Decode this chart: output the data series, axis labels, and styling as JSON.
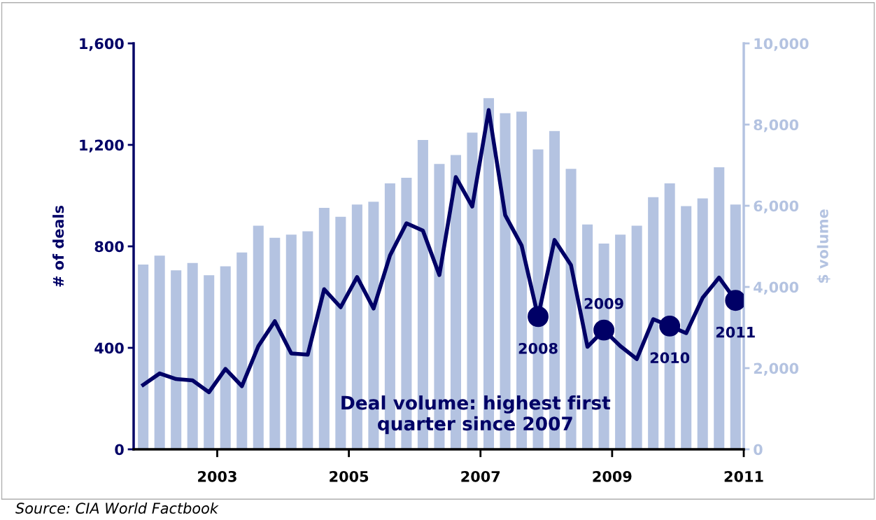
{
  "chart_data": {
    "type": "bar",
    "x": [
      2001.875,
      2002.125,
      2002.375,
      2002.625,
      2002.875,
      2003.125,
      2003.375,
      2003.625,
      2003.875,
      2004.125,
      2004.375,
      2004.625,
      2004.875,
      2005.125,
      2005.375,
      2005.625,
      2005.875,
      2006.125,
      2006.375,
      2006.625,
      2006.875,
      2007.125,
      2007.375,
      2007.625,
      2007.875,
      2008.125,
      2008.375,
      2008.625,
      2008.875,
      2009.125,
      2009.375,
      2009.625,
      2009.875,
      2010.125,
      2010.375,
      2010.625,
      2010.875
    ],
    "series": [
      {
        "axis": "y2",
        "color": "#b4c3e1",
        "values": [
          4550,
          4770,
          4410,
          4590,
          4290,
          4510,
          4850,
          5510,
          5210,
          5290,
          5370,
          5950,
          5730,
          6030,
          6100,
          6550,
          6690,
          7620,
          7030,
          7250,
          7800,
          8650,
          8280,
          8320,
          7390,
          7840,
          6910,
          5540,
          5070,
          5290,
          5510,
          6210,
          6550,
          5990,
          6180,
          6950,
          6030
        ]
      },
      {
        "type": "line",
        "color": "#000066",
        "values": [
          254,
          299,
          277,
          272,
          225,
          317,
          249,
          407,
          505,
          378,
          373,
          631,
          560,
          679,
          555,
          764,
          891,
          862,
          687,
          1073,
          957,
          1337,
          923,
          803,
          523,
          825,
          726,
          404,
          470,
          407,
          356,
          513,
          486,
          458,
          597,
          677,
          587
        ]
      },
      {
        "type": "scatter",
        "color": "#000066",
        "marker": "circle",
        "x": [
          2007.875,
          2008.875,
          2009.875,
          2010.875
        ],
        "values": [
          523,
          470,
          486,
          587
        ]
      }
    ],
    "xlim": [
      2001.73,
      2011
    ],
    "xticks": [
      2003,
      2005,
      2007,
      2009,
      2011
    ],
    "ylim": [
      0,
      1600
    ],
    "yticks": [
      {
        "value": 0,
        "label": "0"
      },
      {
        "value": 400,
        "label": "400"
      },
      {
        "value": 800,
        "label": "800"
      },
      {
        "value": 1200,
        "label": "1,200"
      },
      {
        "value": 1600,
        "label": "1,600"
      }
    ],
    "y2lim": [
      0,
      10000
    ],
    "y2ticks": [
      {
        "value": 0,
        "label": "0"
      },
      {
        "value": 2000,
        "label": "2,000"
      },
      {
        "value": 4000,
        "label": "4,000"
      },
      {
        "value": 6000,
        "label": "6,000"
      },
      {
        "value": 8000,
        "label": "8,000"
      },
      {
        "value": 10000,
        "label": "10,000"
      }
    ],
    "ylabel": "# of deals",
    "y2label": "$ volume",
    "annotations": [
      {
        "text": "2008",
        "x": 2007.875,
        "y": 523
      },
      {
        "text": "2009",
        "x": 2008.875,
        "y": 470
      },
      {
        "text": "2010",
        "x": 2009.875,
        "y": 486
      },
      {
        "text": "2011",
        "x": 2010.875,
        "y": 587
      },
      "Deal volume: highest first\nquarter since 2007",
      "Source: CIA World Factbook"
    ],
    "grid": false,
    "legend": false
  }
}
